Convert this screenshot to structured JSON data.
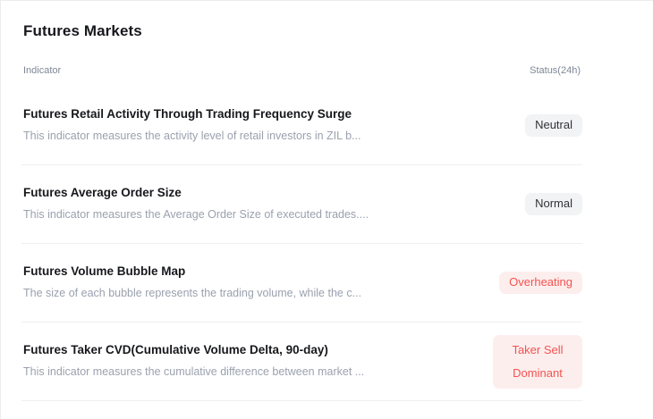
{
  "page": {
    "title": "Futures Markets"
  },
  "table": {
    "columns": {
      "indicator": "Indicator",
      "status": "Status(24h)"
    },
    "rows": [
      {
        "title": "Futures Retail Activity Through Trading Frequency Surge",
        "description": "This indicator measures the activity level of retail investors in ZIL b...",
        "status": "Neutral",
        "tone": "muted"
      },
      {
        "title": "Futures Average Order Size",
        "description": "This indicator measures the Average Order Size of executed trades....",
        "status": "Normal",
        "tone": "muted"
      },
      {
        "title": "Futures Volume Bubble Map",
        "description": "The size of each bubble represents the trading volume, while the c...",
        "status": "Overheating",
        "tone": "danger"
      },
      {
        "title": "Futures Taker CVD(Cumulative Volume Delta, 90-day)",
        "description": "This indicator measures the cumulative difference between market ...",
        "status": "Taker Sell Dominant",
        "tone": "danger"
      }
    ]
  },
  "colors": {
    "title_text": "#17181c",
    "description_text": "#9aa1ae",
    "header_text": "#7e8795",
    "divider": "#efefef",
    "badge_muted_bg": "#f2f3f5",
    "badge_muted_text": "#2f3338",
    "badge_danger_bg": "#fdeeee",
    "badge_danger_text": "#f3534f"
  }
}
